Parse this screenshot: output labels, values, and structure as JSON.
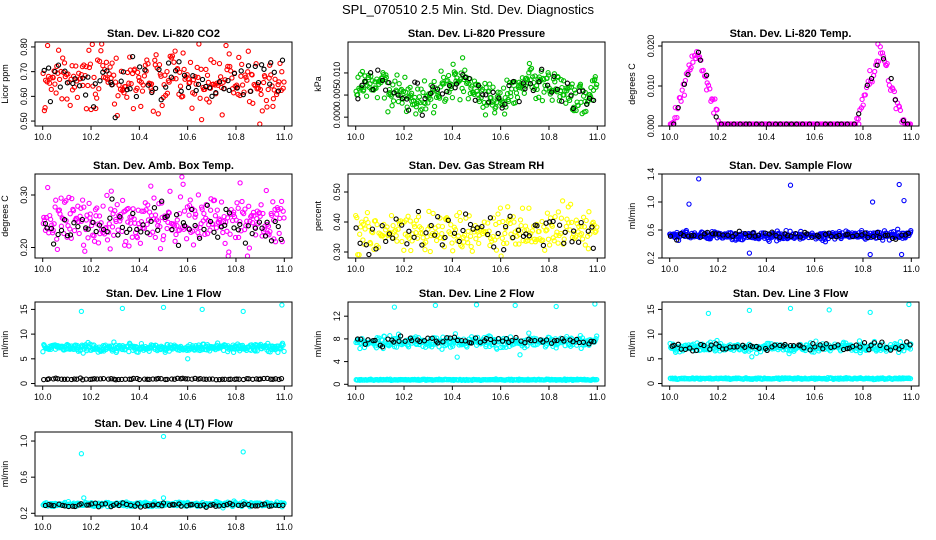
{
  "figure": {
    "title": "SPL_070510  2.5 Min. Std. Dev. Diagnostics"
  },
  "colors": {
    "red": "#ff0000",
    "green": "#00c000",
    "magenta": "#ff00ff",
    "yellow": "#ffff00",
    "blue": "#0000ff",
    "cyan": "#00ffff",
    "black": "#000000"
  },
  "chart_data": [
    {
      "type": "scatter",
      "title": "Stan. Dev. Li-820 CO2",
      "ylabel": "Licor ppm",
      "xlim": [
        10.0,
        11.0
      ],
      "ylim": [
        0.48,
        0.82
      ],
      "xticks": [
        "10.0",
        "10.2",
        "10.4",
        "10.6",
        "10.8",
        "11.0"
      ],
      "yticks": [
        0.5,
        0.6,
        0.7,
        0.8
      ],
      "ytick_labels": [
        "0.50",
        "0.60",
        "0.70",
        "0.80"
      ],
      "series": [
        {
          "color": "red",
          "pattern": "noise",
          "mean": 0.66,
          "sd": 0.06,
          "n": 260,
          "seed": 1
        },
        {
          "color": "black",
          "pattern": "noise",
          "mean": 0.66,
          "sd": 0.05,
          "n": 70,
          "seed": 2
        }
      ]
    },
    {
      "type": "scatter",
      "title": "Stan. Dev. Li-820 Pressure",
      "ylabel": "kPa",
      "xlim": [
        10.0,
        11.0
      ],
      "ylim": [
        -0.002,
        0.017
      ],
      "xticks": [
        "10.0",
        "10.2",
        "10.4",
        "10.6",
        "10.8",
        "11.0"
      ],
      "yticks": [
        0.0,
        0.005,
        0.01
      ],
      "ytick_labels": [
        "0.000",
        "0.005",
        "0.010"
      ],
      "series": [
        {
          "color": "green",
          "pattern": "wave",
          "mean": 0.006,
          "sd": 0.002,
          "amp": 0.002,
          "freq": 3,
          "floor": 0.0,
          "n": 340,
          "seed": 3
        },
        {
          "color": "black",
          "pattern": "wave",
          "mean": 0.006,
          "sd": 0.0015,
          "amp": 0.002,
          "freq": 3,
          "floor": 0.0,
          "n": 60,
          "seed": 4
        }
      ]
    },
    {
      "type": "scatter",
      "title": "Stan. Dev. Li-820 Temp.",
      "ylabel": "degrees C",
      "xlim": [
        10.0,
        11.0
      ],
      "ylim": [
        0.0,
        0.021
      ],
      "xticks": [
        "10.0",
        "10.2",
        "10.4",
        "10.6",
        "10.8",
        "11.0"
      ],
      "yticks": [
        0.0,
        0.01,
        0.02
      ],
      "ytick_labels": [
        "0.000",
        "0.010",
        "0.020"
      ],
      "series": [
        {
          "color": "magenta",
          "pattern": "peaks",
          "n": 220,
          "seed": 5
        },
        {
          "color": "black",
          "pattern": "peaks",
          "n": 40,
          "seed": 6
        }
      ]
    },
    {
      "type": "scatter",
      "title": "Stan. Dev. Amb. Box Temp.",
      "ylabel": "degrees C",
      "xlim": [
        10.0,
        11.0
      ],
      "ylim": [
        0.18,
        0.34
      ],
      "xticks": [
        "10.0",
        "10.2",
        "10.4",
        "10.6",
        "10.8",
        "11.0"
      ],
      "yticks": [
        0.2,
        0.3
      ],
      "ytick_labels": [
        "0.20",
        "0.30"
      ],
      "series": [
        {
          "color": "magenta",
          "pattern": "noise",
          "mean": 0.25,
          "sd": 0.025,
          "n": 300,
          "seed": 7
        },
        {
          "color": "black",
          "pattern": "noise",
          "mean": 0.24,
          "sd": 0.02,
          "n": 70,
          "seed": 8
        }
      ]
    },
    {
      "type": "scatter",
      "title": "Stan. Dev. Gas Stream RH",
      "ylabel": "percent",
      "xlim": [
        10.0,
        11.0
      ],
      "ylim": [
        0.28,
        0.56
      ],
      "xticks": [
        "10.0",
        "10.2",
        "10.4",
        "10.6",
        "10.8",
        "11.0"
      ],
      "yticks": [
        0.3,
        0.4,
        0.5
      ],
      "ytick_labels": [
        "0.30",
        "0.40",
        "0.50"
      ],
      "series": [
        {
          "color": "yellow",
          "pattern": "noise",
          "mean": 0.37,
          "sd": 0.035,
          "n": 260,
          "seed": 9
        },
        {
          "color": "black",
          "pattern": "noise",
          "mean": 0.36,
          "sd": 0.03,
          "n": 60,
          "seed": 10
        }
      ]
    },
    {
      "type": "scatter",
      "title": "Stan. Dev. Sample Flow",
      "ylabel": "ml/min",
      "xlim": [
        10.0,
        11.0
      ],
      "ylim": [
        0.2,
        1.4
      ],
      "xticks": [
        "10.0",
        "10.2",
        "10.4",
        "10.6",
        "10.8",
        "11.0"
      ],
      "yticks": [
        0.2,
        0.6,
        1.0,
        1.4
      ],
      "ytick_labels": [
        "0.2",
        "0.6",
        "1.0",
        "1.4"
      ],
      "series": [
        {
          "color": "blue",
          "pattern": "noise",
          "mean": 0.52,
          "sd": 0.03,
          "n": 360,
          "seed": 11
        },
        {
          "color": "black",
          "pattern": "noise",
          "mean": 0.52,
          "sd": 0.025,
          "n": 60,
          "seed": 12
        }
      ],
      "outliers": {
        "color": "blue",
        "points": [
          [
            10.12,
            1.33
          ],
          [
            10.5,
            1.24
          ],
          [
            10.08,
            0.97
          ],
          [
            10.95,
            1.25
          ],
          [
            10.97,
            1.02
          ],
          [
            10.84,
            1.0
          ],
          [
            10.33,
            0.27
          ],
          [
            10.83,
            0.25
          ],
          [
            10.96,
            0.25
          ]
        ]
      }
    },
    {
      "type": "scatter",
      "title": "Stan. Dev. Line 1 Flow",
      "ylabel": "ml/min",
      "xlim": [
        10.0,
        11.0
      ],
      "ylim": [
        -0.5,
        16.5
      ],
      "xticks": [
        "10.0",
        "10.2",
        "10.4",
        "10.6",
        "10.8",
        "11.0"
      ],
      "yticks": [
        0,
        5,
        10,
        15
      ],
      "ytick_labels": [
        "0",
        "5",
        "10",
        "15"
      ],
      "series": [
        {
          "color": "cyan",
          "pattern": "noise",
          "mean": 7.3,
          "sd": 0.4,
          "n": 360,
          "seed": 13
        },
        {
          "color": "black",
          "pattern": "noise",
          "mean": 0.9,
          "sd": 0.08,
          "n": 80,
          "seed": 14
        }
      ],
      "outliers": {
        "color": "cyan",
        "points": [
          [
            10.16,
            14.6
          ],
          [
            10.33,
            15.2
          ],
          [
            10.5,
            15.4
          ],
          [
            10.66,
            15.0
          ],
          [
            10.83,
            14.6
          ],
          [
            10.99,
            15.9
          ],
          [
            10.6,
            5.0
          ]
        ]
      }
    },
    {
      "type": "scatter",
      "title": "Stan. Dev. Line 2 Flow",
      "ylabel": "ml/min",
      "xlim": [
        10.0,
        11.0
      ],
      "ylim": [
        -0.3,
        14.5
      ],
      "xticks": [
        "10.0",
        "10.2",
        "10.4",
        "10.6",
        "10.8",
        "11.0"
      ],
      "yticks": [
        0,
        4,
        8,
        12
      ],
      "ytick_labels": [
        "0",
        "4",
        "8",
        "12"
      ],
      "series": [
        {
          "color": "cyan",
          "pattern": "noise",
          "mean": 7.5,
          "sd": 0.5,
          "n": 320,
          "seed": 15
        },
        {
          "color": "cyan",
          "pattern": "noise",
          "mean": 0.8,
          "sd": 0.05,
          "n": 240,
          "seed": 16
        },
        {
          "color": "black",
          "pattern": "noise",
          "mean": 7.8,
          "sd": 0.35,
          "n": 65,
          "seed": 17
        }
      ],
      "outliers": {
        "color": "cyan",
        "points": [
          [
            10.16,
            13.6
          ],
          [
            10.33,
            13.9
          ],
          [
            10.5,
            14.0
          ],
          [
            10.66,
            13.9
          ],
          [
            10.83,
            13.7
          ],
          [
            10.99,
            14.3
          ],
          [
            10.42,
            4.8
          ],
          [
            10.68,
            5.2
          ]
        ]
      }
    },
    {
      "type": "scatter",
      "title": "Stan. Dev. Line 3 Flow",
      "ylabel": "ml/min",
      "xlim": [
        10.0,
        11.0
      ],
      "ylim": [
        -0.5,
        16.5
      ],
      "xticks": [
        "10.0",
        "10.2",
        "10.4",
        "10.6",
        "10.8",
        "11.0"
      ],
      "yticks": [
        0,
        5,
        10,
        15
      ],
      "ytick_labels": [
        "0",
        "5",
        "10",
        "15"
      ],
      "series": [
        {
          "color": "cyan",
          "pattern": "noise",
          "mean": 7.3,
          "sd": 0.45,
          "n": 320,
          "seed": 18
        },
        {
          "color": "cyan",
          "pattern": "noise",
          "mean": 1.0,
          "sd": 0.08,
          "n": 240,
          "seed": 19
        },
        {
          "color": "black",
          "pattern": "noise",
          "mean": 7.4,
          "sd": 0.4,
          "n": 65,
          "seed": 20
        }
      ],
      "outliers": {
        "color": "cyan",
        "points": [
          [
            10.16,
            14.2
          ],
          [
            10.33,
            14.8
          ],
          [
            10.5,
            15.2
          ],
          [
            10.66,
            14.9
          ],
          [
            10.83,
            14.4
          ],
          [
            10.99,
            16.0
          ],
          [
            10.34,
            5.4
          ]
        ]
      }
    },
    {
      "type": "scatter",
      "title": "Stan. Dev. Line 4 (LT) Flow",
      "ylabel": "ml/min",
      "xlim": [
        10.0,
        11.0
      ],
      "ylim": [
        0.17,
        1.1
      ],
      "xticks": [
        "10.0",
        "10.2",
        "10.4",
        "10.6",
        "10.8",
        "11.0"
      ],
      "yticks": [
        0.2,
        0.6,
        1.0
      ],
      "ytick_labels": [
        "0.2",
        "0.6",
        "1.0"
      ],
      "series": [
        {
          "color": "cyan",
          "pattern": "noise",
          "mean": 0.3,
          "sd": 0.012,
          "n": 360,
          "seed": 21
        },
        {
          "color": "black",
          "pattern": "noise",
          "mean": 0.29,
          "sd": 0.01,
          "n": 70,
          "seed": 22
        }
      ],
      "outliers": {
        "color": "cyan",
        "points": [
          [
            10.16,
            0.86
          ],
          [
            10.5,
            1.05
          ],
          [
            10.83,
            0.88
          ],
          [
            10.17,
            0.37
          ],
          [
            10.5,
            0.37
          ]
        ]
      }
    }
  ]
}
